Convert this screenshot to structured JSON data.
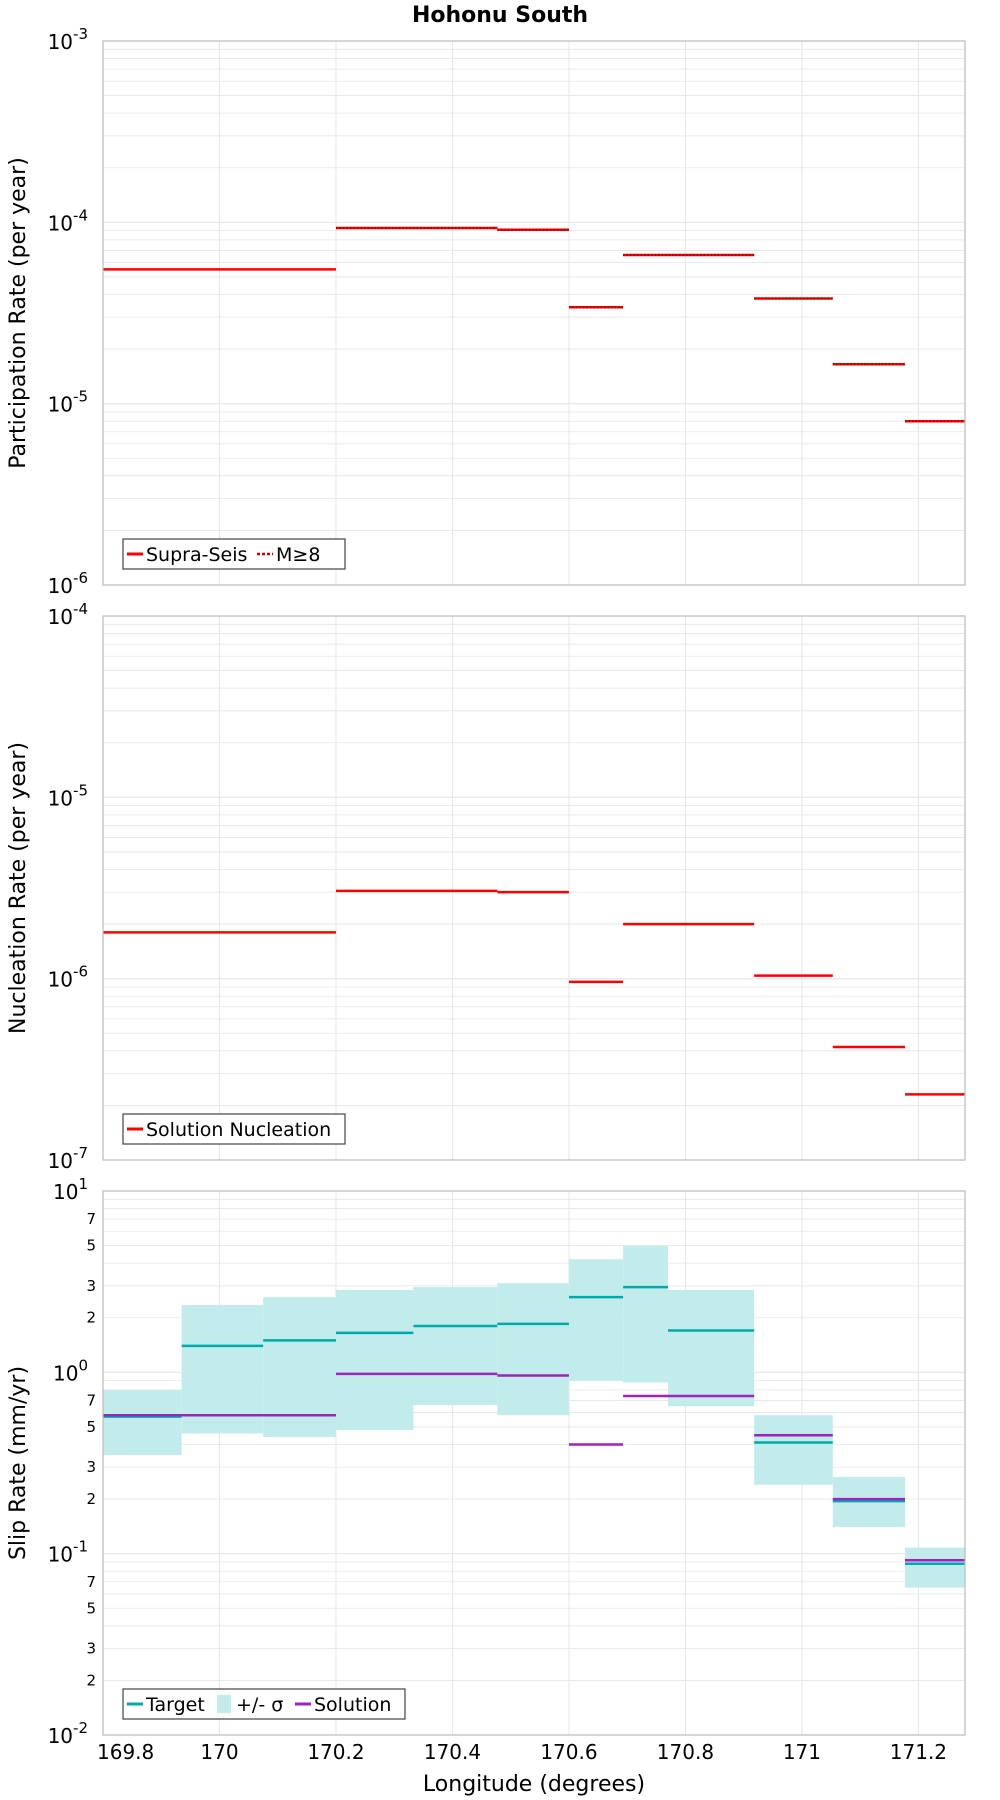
{
  "title": "Hohonu South",
  "xlabel": "Longitude (degrees)",
  "colors": {
    "red": "#ff0000",
    "target": "#00aaaa",
    "band": "#c2ecec",
    "solution": "#a020c0",
    "grid": "#e6e6e6",
    "frame": "#bbbbbb"
  },
  "chart_data": [
    {
      "type": "line",
      "ylabel": "Participation Rate (per year)",
      "yscale": "log",
      "ylim": [
        1e-06,
        0.001
      ],
      "xlim": [
        169.8,
        171.28
      ],
      "ytick_labels": [
        {
          "base": "10",
          "exp": "-6"
        },
        {
          "base": "10",
          "exp": "-5"
        },
        {
          "base": "10",
          "exp": "-4"
        },
        {
          "base": "10",
          "exp": "-3"
        }
      ],
      "legend": {
        "placement": "bottom-left",
        "entries": [
          "Supra-Seis",
          "M≥8"
        ]
      },
      "series": [
        {
          "name": "Supra-Seis",
          "style": "solid",
          "segments": [
            {
              "x0": 169.8,
              "x1": 170.2,
              "y": 5.5e-05
            },
            {
              "x0": 170.2,
              "x1": 170.477,
              "y": 9.3e-05
            },
            {
              "x0": 170.477,
              "x1": 170.6,
              "y": 9.1e-05
            },
            {
              "x0": 170.6,
              "x1": 170.693,
              "y": 3.4e-05
            },
            {
              "x0": 170.693,
              "x1": 170.918,
              "y": 6.6e-05
            },
            {
              "x0": 170.918,
              "x1": 171.053,
              "y": 3.8e-05
            },
            {
              "x0": 171.053,
              "x1": 171.177,
              "y": 1.65e-05
            },
            {
              "x0": 171.177,
              "x1": 171.28,
              "y": 8e-06
            }
          ]
        },
        {
          "name": "M≥8",
          "style": "dotted",
          "segments": [
            {
              "x0": 170.2,
              "x1": 170.477,
              "y": 9.3e-05
            },
            {
              "x0": 170.477,
              "x1": 170.6,
              "y": 9.1e-05
            },
            {
              "x0": 170.6,
              "x1": 170.693,
              "y": 3.4e-05
            },
            {
              "x0": 170.693,
              "x1": 170.918,
              "y": 6.6e-05
            },
            {
              "x0": 170.918,
              "x1": 171.053,
              "y": 3.8e-05
            },
            {
              "x0": 171.053,
              "x1": 171.177,
              "y": 1.65e-05
            },
            {
              "x0": 171.177,
              "x1": 171.28,
              "y": 8e-06
            }
          ]
        }
      ]
    },
    {
      "type": "line",
      "ylabel": "Nucleation Rate (per year)",
      "yscale": "log",
      "ylim": [
        1e-07,
        0.0001
      ],
      "xlim": [
        169.8,
        171.28
      ],
      "ytick_labels": [
        {
          "base": "10",
          "exp": "-7"
        },
        {
          "base": "10",
          "exp": "-6"
        },
        {
          "base": "10",
          "exp": "-5"
        },
        {
          "base": "10",
          "exp": "-4"
        }
      ],
      "legend": {
        "placement": "bottom-left",
        "entries": [
          "Solution Nucleation"
        ]
      },
      "series": [
        {
          "name": "Solution Nucleation",
          "style": "solid",
          "segments": [
            {
              "x0": 169.8,
              "x1": 170.2,
              "y": 1.8e-06
            },
            {
              "x0": 170.2,
              "x1": 170.477,
              "y": 3.05e-06
            },
            {
              "x0": 170.477,
              "x1": 170.6,
              "y": 3e-06
            },
            {
              "x0": 170.6,
              "x1": 170.693,
              "y": 9.6e-07
            },
            {
              "x0": 170.693,
              "x1": 170.918,
              "y": 2e-06
            },
            {
              "x0": 170.918,
              "x1": 171.053,
              "y": 1.04e-06
            },
            {
              "x0": 171.053,
              "x1": 171.177,
              "y": 4.2e-07
            },
            {
              "x0": 171.177,
              "x1": 171.28,
              "y": 2.3e-07
            }
          ]
        }
      ]
    },
    {
      "type": "line",
      "ylabel": "Slip Rate (mm/yr)",
      "xlabel": "Longitude (degrees)",
      "yscale": "log",
      "ylim": [
        0.01,
        10
      ],
      "xlim": [
        169.8,
        171.28
      ],
      "xticks": [
        "169.8",
        "170",
        "170.2",
        "170.4",
        "170.6",
        "170.8",
        "171",
        "171.2"
      ],
      "ytick_labels": [
        {
          "base": "10",
          "exp": "-2"
        },
        {
          "base": "10",
          "exp": "-1"
        },
        {
          "base": "10",
          "exp": "0"
        },
        {
          "base": "10",
          "exp": "1"
        }
      ],
      "minor_tick_labels": [
        "2",
        "3",
        "5",
        "7"
      ],
      "legend": {
        "placement": "bottom-left",
        "entries": [
          "Target",
          "+/- σ",
          "Solution"
        ]
      },
      "series": [
        {
          "name": "Target",
          "segments": [
            {
              "x0": 169.8,
              "x1": 169.935,
              "y": 0.57,
              "lo": 0.35,
              "hi": 0.8
            },
            {
              "x0": 169.935,
              "x1": 170.075,
              "y": 1.4,
              "lo": 0.46,
              "hi": 2.35
            },
            {
              "x0": 170.075,
              "x1": 170.2,
              "y": 1.5,
              "lo": 0.44,
              "hi": 2.6
            },
            {
              "x0": 170.2,
              "x1": 170.333,
              "y": 1.65,
              "lo": 0.48,
              "hi": 2.85
            },
            {
              "x0": 170.333,
              "x1": 170.477,
              "y": 1.8,
              "lo": 0.66,
              "hi": 2.95
            },
            {
              "x0": 170.477,
              "x1": 170.6,
              "y": 1.85,
              "lo": 0.58,
              "hi": 3.1
            },
            {
              "x0": 170.6,
              "x1": 170.693,
              "y": 2.6,
              "lo": 0.9,
              "hi": 4.2
            },
            {
              "x0": 170.693,
              "x1": 170.77,
              "y": 2.95,
              "lo": 0.88,
              "hi": 5.0
            },
            {
              "x0": 170.77,
              "x1": 170.918,
              "y": 1.7,
              "lo": 0.65,
              "hi": 2.85
            },
            {
              "x0": 170.918,
              "x1": 171.053,
              "y": 0.41,
              "lo": 0.24,
              "hi": 0.58
            },
            {
              "x0": 171.053,
              "x1": 171.177,
              "y": 0.195,
              "lo": 0.14,
              "hi": 0.265
            },
            {
              "x0": 171.177,
              "x1": 171.28,
              "y": 0.088,
              "lo": 0.065,
              "hi": 0.108
            }
          ]
        },
        {
          "name": "Solution",
          "segments": [
            {
              "x0": 169.8,
              "x1": 170.2,
              "y": 0.58
            },
            {
              "x0": 170.2,
              "x1": 170.477,
              "y": 0.98
            },
            {
              "x0": 170.477,
              "x1": 170.6,
              "y": 0.96
            },
            {
              "x0": 170.6,
              "x1": 170.693,
              "y": 0.4
            },
            {
              "x0": 170.693,
              "x1": 170.918,
              "y": 0.74
            },
            {
              "x0": 170.918,
              "x1": 171.053,
              "y": 0.45
            },
            {
              "x0": 171.053,
              "x1": 171.177,
              "y": 0.2
            },
            {
              "x0": 171.177,
              "x1": 171.28,
              "y": 0.092
            }
          ]
        }
      ]
    }
  ]
}
